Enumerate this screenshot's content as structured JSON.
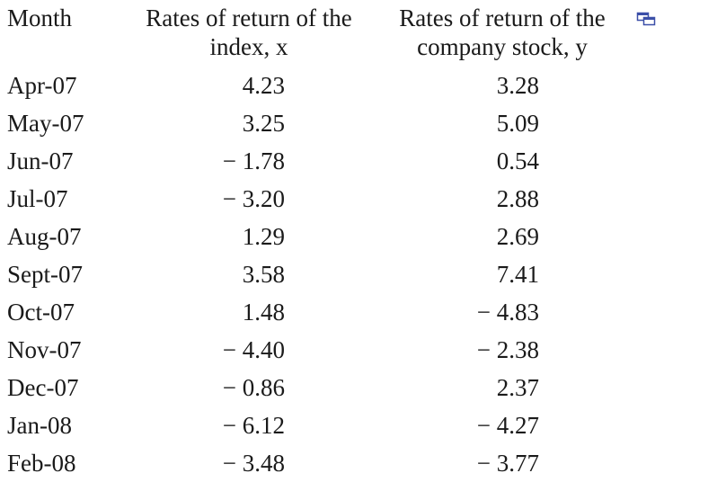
{
  "table": {
    "headers": {
      "month": "Month",
      "x_line1": "Rates of return of the",
      "x_line2": "index, x",
      "y_line1": "Rates of return of the",
      "y_line2": "company stock, y"
    },
    "popout_icon": "popout-window-icon",
    "accent_color": "#3b4fa8",
    "rows": [
      {
        "month": "Apr-07",
        "x": "4.23",
        "y": "3.28"
      },
      {
        "month": "May-07",
        "x": "3.25",
        "y": "5.09"
      },
      {
        "month": "Jun-07",
        "x": "− 1.78",
        "y": "0.54"
      },
      {
        "month": "Jul-07",
        "x": "− 3.20",
        "y": "2.88"
      },
      {
        "month": "Aug-07",
        "x": "1.29",
        "y": "2.69"
      },
      {
        "month": "Sept-07",
        "x": "3.58",
        "y": "7.41"
      },
      {
        "month": "Oct-07",
        "x": "1.48",
        "y": "− 4.83"
      },
      {
        "month": "Nov-07",
        "x": "− 4.40",
        "y": "− 2.38"
      },
      {
        "month": "Dec-07",
        "x": "− 0.86",
        "y": "2.37"
      },
      {
        "month": "Jan-08",
        "x": "− 6.12",
        "y": "− 4.27"
      },
      {
        "month": "Feb-08",
        "x": "− 3.48",
        "y": "− 3.77"
      }
    ]
  }
}
